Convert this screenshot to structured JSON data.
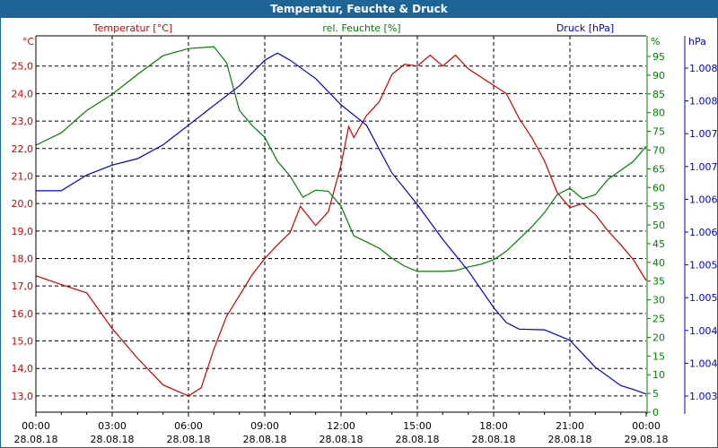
{
  "window": {
    "title": "Temperatur, Feuchte & Druck"
  },
  "colors": {
    "temperature": "#d00000",
    "humidity": "#008000",
    "pressure": "#0000d0",
    "titlebar": "#1e6496"
  },
  "chart_data": {
    "type": "line",
    "title": "Temperatur, Feuchte & Druck",
    "x_ticks": [
      {
        "time": "00:00",
        "date": "28.08.18"
      },
      {
        "time": "03:00",
        "date": "28.08.18"
      },
      {
        "time": "06:00",
        "date": "28.08.18"
      },
      {
        "time": "09:00",
        "date": "28.08.18"
      },
      {
        "time": "12:00",
        "date": "28.08.18"
      },
      {
        "time": "15:00",
        "date": "28.08.18"
      },
      {
        "time": "18:00",
        "date": "28.08.18"
      },
      {
        "time": "21:00",
        "date": "28.08.18"
      },
      {
        "time": "00:00",
        "date": "29.08.18"
      }
    ],
    "xlim_hours": [
      0,
      24
    ],
    "grid": true,
    "axes": {
      "temperature": {
        "label": "Temperatur [°C]",
        "unit": "°C",
        "ylim": [
          12.41,
          26.1
        ],
        "ticks": [
          "13,0",
          "14,0",
          "15,0",
          "16,0",
          "17,0",
          "18,0",
          "19,0",
          "20,0",
          "21,0",
          "22,0",
          "23,0",
          "24,0",
          "25,0"
        ],
        "tick_values": [
          13,
          14,
          15,
          16,
          17,
          18,
          19,
          20,
          21,
          22,
          23,
          24,
          25
        ]
      },
      "humidity": {
        "label": "rel. Feuchte [%]",
        "unit": "%",
        "ylim": [
          0,
          100.5
        ],
        "ticks": [
          "0",
          "5",
          "10",
          "15",
          "20",
          "25",
          "30",
          "35",
          "40",
          "45",
          "50",
          "55",
          "60",
          "65",
          "70",
          "75",
          "80",
          "85",
          "90",
          "95"
        ],
        "tick_values": [
          0,
          5,
          10,
          15,
          20,
          25,
          30,
          35,
          40,
          45,
          50,
          55,
          60,
          65,
          70,
          75,
          80,
          85,
          90,
          95
        ]
      },
      "pressure": {
        "label": "Druck [hPa]",
        "unit": "hPa",
        "ticks": [
          "1.003",
          "1.004",
          "1.004",
          "1.005",
          "1.005",
          "1.006",
          "1.006",
          "1.007",
          "1.007",
          "1.008",
          "1.008"
        ],
        "tick_values": [
          1.003,
          1.0035,
          1.004,
          1.0045,
          1.005,
          1.0055,
          1.006,
          1.0065,
          1.007,
          1.0075,
          1.008
        ]
      }
    },
    "series": [
      {
        "name": "Temperatur [°C]",
        "axis": "temperature",
        "x": [
          0,
          1,
          2,
          3,
          4,
          5,
          6,
          6.5,
          7,
          7.5,
          8,
          8.5,
          9,
          9.5,
          10,
          10.4,
          11,
          11.5,
          12,
          12.3,
          12.5,
          13,
          13.5,
          14,
          14.5,
          15,
          15.5,
          16,
          16.5,
          17,
          17.5,
          18,
          18.5,
          19,
          19.5,
          20,
          20.5,
          21,
          21.5,
          22,
          22.5,
          23,
          23.5,
          24
        ],
        "y": [
          17.37,
          17.05,
          16.75,
          15.45,
          14.37,
          13.4,
          13.0,
          13.3,
          14.7,
          15.9,
          16.65,
          17.4,
          18.0,
          18.5,
          18.95,
          19.9,
          19.2,
          19.7,
          21.4,
          22.8,
          22.4,
          23.2,
          23.7,
          24.7,
          25.07,
          25.0,
          25.4,
          25.0,
          25.4,
          24.9,
          24.6,
          24.3,
          24.0,
          23.1,
          22.4,
          21.55,
          20.4,
          19.85,
          20.0,
          19.6,
          19.0,
          18.5,
          17.95,
          17.2
        ]
      },
      {
        "name": "rel. Feuchte [%]",
        "axis": "humidity",
        "x": [
          0,
          1,
          2,
          3,
          4,
          5,
          6,
          7,
          7.5,
          8,
          8.5,
          9,
          9.5,
          10,
          10.5,
          11,
          11.5,
          12,
          12.5,
          13,
          13.5,
          14,
          14.5,
          15,
          15.5,
          16,
          16.5,
          17,
          17.5,
          18,
          18.5,
          19,
          19.5,
          20,
          20.5,
          21,
          21.5,
          22,
          22.5,
          23,
          23.5,
          24
        ],
        "y": [
          71.3,
          74.6,
          80.6,
          84.9,
          90.2,
          95.2,
          97.1,
          97.6,
          93.3,
          80.6,
          76.6,
          73.4,
          67,
          63,
          57.4,
          59.3,
          59,
          55,
          47.1,
          45.5,
          43.8,
          41.1,
          39,
          37.6,
          37.6,
          37.6,
          37.8,
          38.8,
          39.5,
          40.7,
          43,
          46.2,
          49.5,
          53.3,
          58.1,
          59.8,
          57,
          58.1,
          62.2,
          64.6,
          67,
          71
        ]
      },
      {
        "name": "Druck [hPa]",
        "axis": "pressure",
        "x": [
          0,
          1,
          2,
          3,
          4,
          5,
          6,
          7,
          8,
          9,
          9.5,
          10,
          11,
          12,
          13,
          14,
          15,
          16,
          17,
          18,
          18.5,
          19,
          20,
          21,
          22,
          23,
          23.5,
          24
        ],
        "y": [
          1.00613,
          1.00613,
          1.00637,
          1.00652,
          1.00662,
          1.00683,
          1.00713,
          1.00743,
          1.00773,
          1.00812,
          1.00823,
          1.00812,
          1.00784,
          1.00744,
          1.00713,
          1.0064,
          1.00592,
          1.00539,
          1.00491,
          1.00435,
          1.00412,
          1.00402,
          1.00401,
          1.00385,
          1.00344,
          1.00316,
          1.0031,
          1.00303
        ]
      }
    ]
  }
}
